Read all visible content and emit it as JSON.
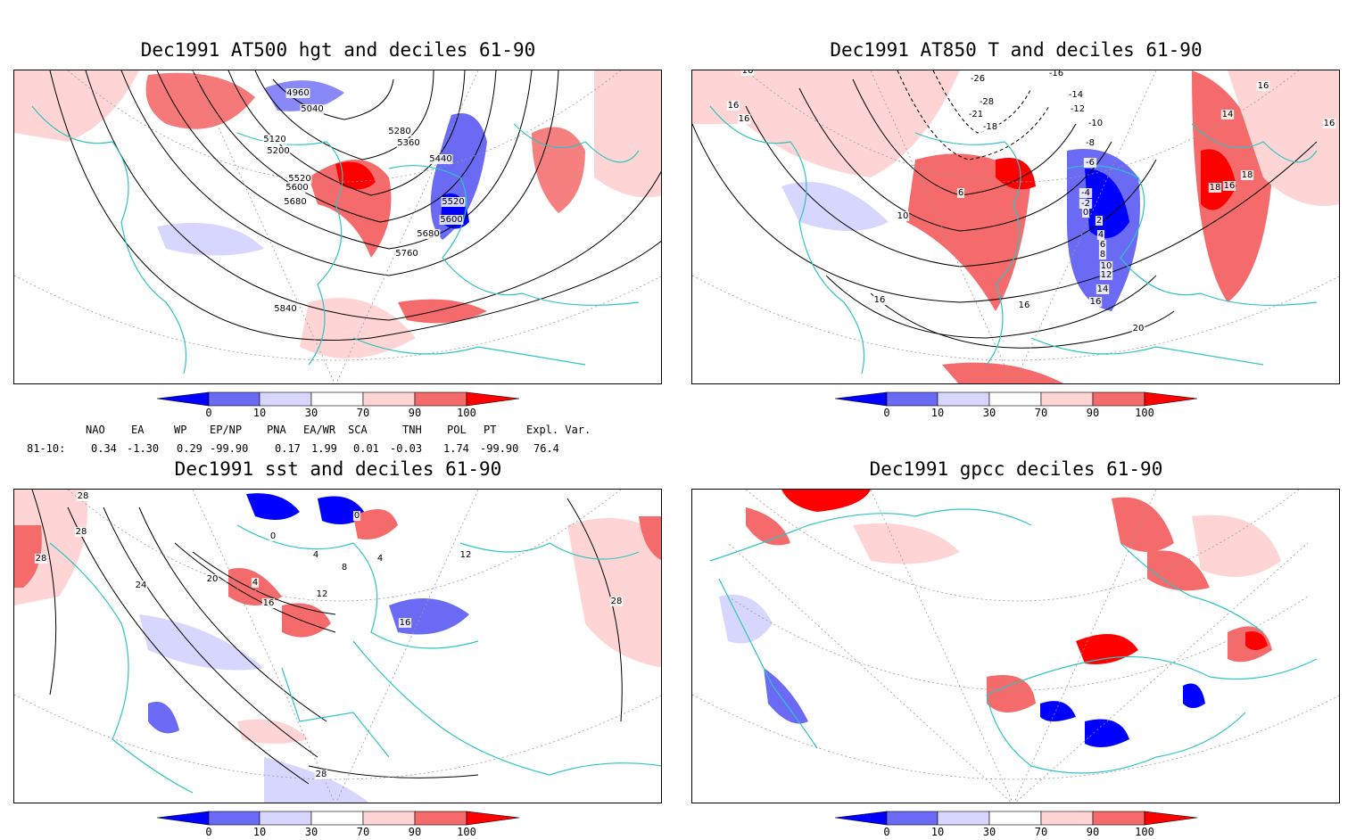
{
  "panels": [
    {
      "id": "p1",
      "title": "Dec1991 AT500 hgt and deciles 61-90",
      "contour_labels": [
        "4960",
        "5040",
        "5120",
        "5200",
        "5280",
        "5360",
        "5440",
        "5520",
        "5600",
        "5680",
        "5520",
        "5600",
        "5680",
        "5760",
        "5840"
      ]
    },
    {
      "id": "p2",
      "title": "Dec1991 AT850 T and deciles 61-90",
      "contour_labels": [
        "16",
        "16",
        "16",
        "16",
        "-26",
        "-28",
        "-21",
        "-18",
        "-16",
        "-14",
        "-12",
        "-10",
        "-8",
        "-6",
        "6",
        "10",
        "-4",
        "-2",
        "0",
        "2",
        "4",
        "6",
        "8",
        "10",
        "12",
        "14",
        "16",
        "16",
        "18",
        "16",
        "18",
        "20",
        "14",
        "16",
        "16"
      ]
    },
    {
      "id": "p3",
      "title": "Dec1991 sst and deciles 61-90",
      "contour_labels": [
        "28",
        "28",
        "28",
        "24",
        "20",
        "4",
        "0",
        "0",
        "4",
        "8",
        "12",
        "16",
        "4",
        "16",
        "12",
        "28",
        "28"
      ]
    },
    {
      "id": "p4",
      "title": "Dec1991 gpcc deciles 61-90",
      "contour_labels": []
    }
  ],
  "colorbar": {
    "ticks": [
      "0",
      "10",
      "30",
      "70",
      "90",
      "100"
    ],
    "colors": [
      "#0000ff",
      "#6a6af5",
      "#d6d6ff",
      "#ffffff",
      "#ffd4d4",
      "#f56a6a",
      "#ff0000"
    ]
  },
  "indices": {
    "header": [
      "NAO",
      "EA",
      "WP",
      "EP/NP",
      "PNA",
      "EA/WR",
      "SCA",
      "TNH",
      "POL",
      "PT",
      "Expl. Var."
    ],
    "period": "81-10:",
    "values": [
      "0.34",
      "-1.30",
      "0.29",
      "-99.90",
      "0.17",
      "1.99",
      "0.01",
      "-0.03",
      "1.74",
      "-99.90",
      "76.4"
    ]
  },
  "map_colors": {
    "coast": "#2fc4c4",
    "grid": "#9a9a9a",
    "contour": "#000000"
  }
}
